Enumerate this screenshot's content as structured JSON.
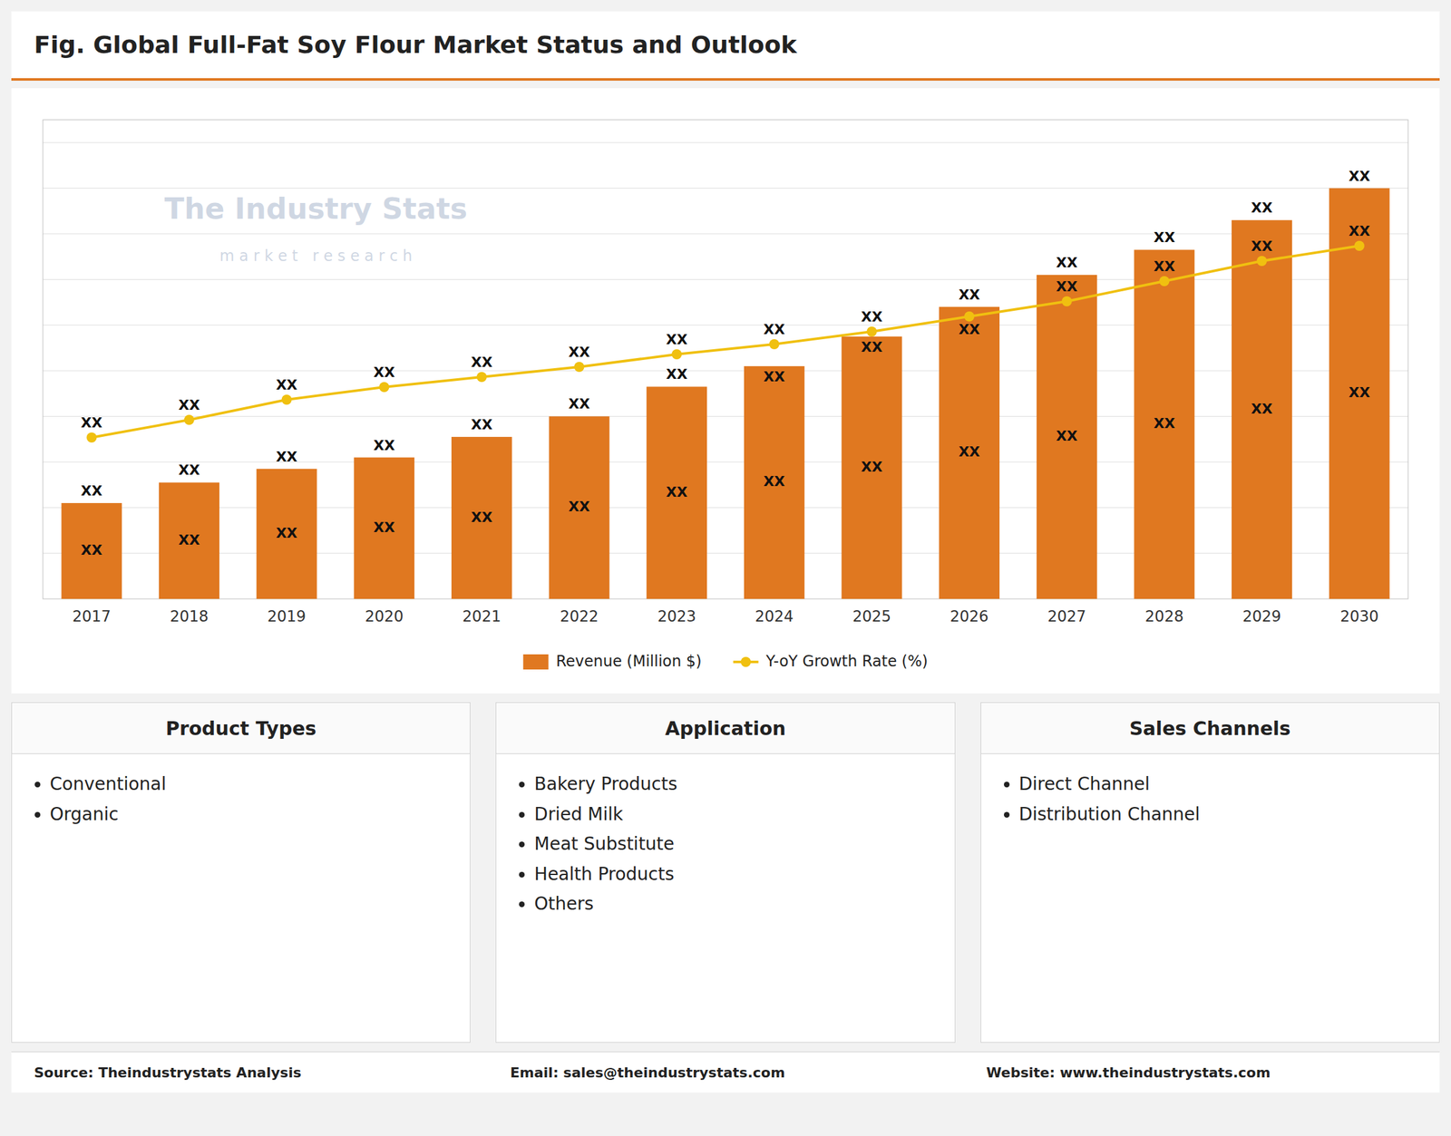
{
  "chart_data": {
    "type": "bar",
    "title": "Fig. Global Full-Fat Soy Flour Market Status and Outlook",
    "categories": [
      "2017",
      "2018",
      "2019",
      "2020",
      "2021",
      "2022",
      "2023",
      "2024",
      "2025",
      "2026",
      "2027",
      "2028",
      "2029",
      "2030"
    ],
    "series": [
      {
        "name": "Revenue (Million $)",
        "type": "bar",
        "color": "#e07820",
        "values": [
          2.1,
          2.55,
          2.85,
          3.1,
          3.55,
          4.0,
          4.65,
          5.1,
          5.75,
          6.4,
          7.1,
          7.65,
          8.3,
          9.0
        ],
        "value_labels": [
          "XX",
          "XX",
          "XX",
          "XX",
          "XX",
          "XX",
          "XX",
          "XX",
          "XX",
          "XX",
          "XX",
          "XX",
          "XX",
          "XX"
        ],
        "inner_value_labels": [
          "XX",
          "XX",
          "XX",
          "XX",
          "XX",
          "XX",
          "XX",
          "XX",
          "XX",
          "XX",
          "XX",
          "XX",
          "XX",
          "XX"
        ]
      },
      {
        "name": "Y-oY Growth Rate (%)",
        "type": "line",
        "axis": "y2",
        "color": "#f0c010",
        "marker": "circle",
        "values": [
          3.2,
          3.55,
          3.95,
          4.2,
          4.4,
          4.6,
          4.85,
          5.05,
          5.3,
          5.6,
          5.9,
          6.3,
          6.7,
          7.0
        ],
        "value_labels": [
          "XX",
          "XX",
          "XX",
          "XX",
          "XX",
          "XX",
          "XX",
          "XX",
          "XX",
          "XX",
          "XX",
          "XX",
          "XX",
          "XX"
        ]
      }
    ],
    "ylim": [
      0,
      10.5
    ],
    "yticks": [
      1,
      2,
      3,
      4,
      5,
      6,
      7,
      8,
      9,
      10
    ],
    "y2lim": [
      0,
      9.5
    ],
    "y2ticks": [],
    "grid": true,
    "legend": "bottom",
    "tick_labels": "x",
    "watermark": [
      "The Industry Stats",
      "m a r k e t   r e s e a r c h"
    ]
  },
  "sections": [
    {
      "title": "Product Types",
      "items": [
        "Conventional",
        "Organic"
      ]
    },
    {
      "title": "Application",
      "items": [
        "Bakery Products",
        "Dried Milk",
        "Meat Substitute",
        "Health Products",
        "Others"
      ]
    },
    {
      "title": "Sales Channels",
      "items": [
        "Direct Channel",
        "Distribution Channel"
      ]
    }
  ],
  "footer": [
    "Source: Theindustrystats Analysis",
    "Email: sales@theindustrystats.com",
    "Website: www.theindustrystats.com"
  ]
}
